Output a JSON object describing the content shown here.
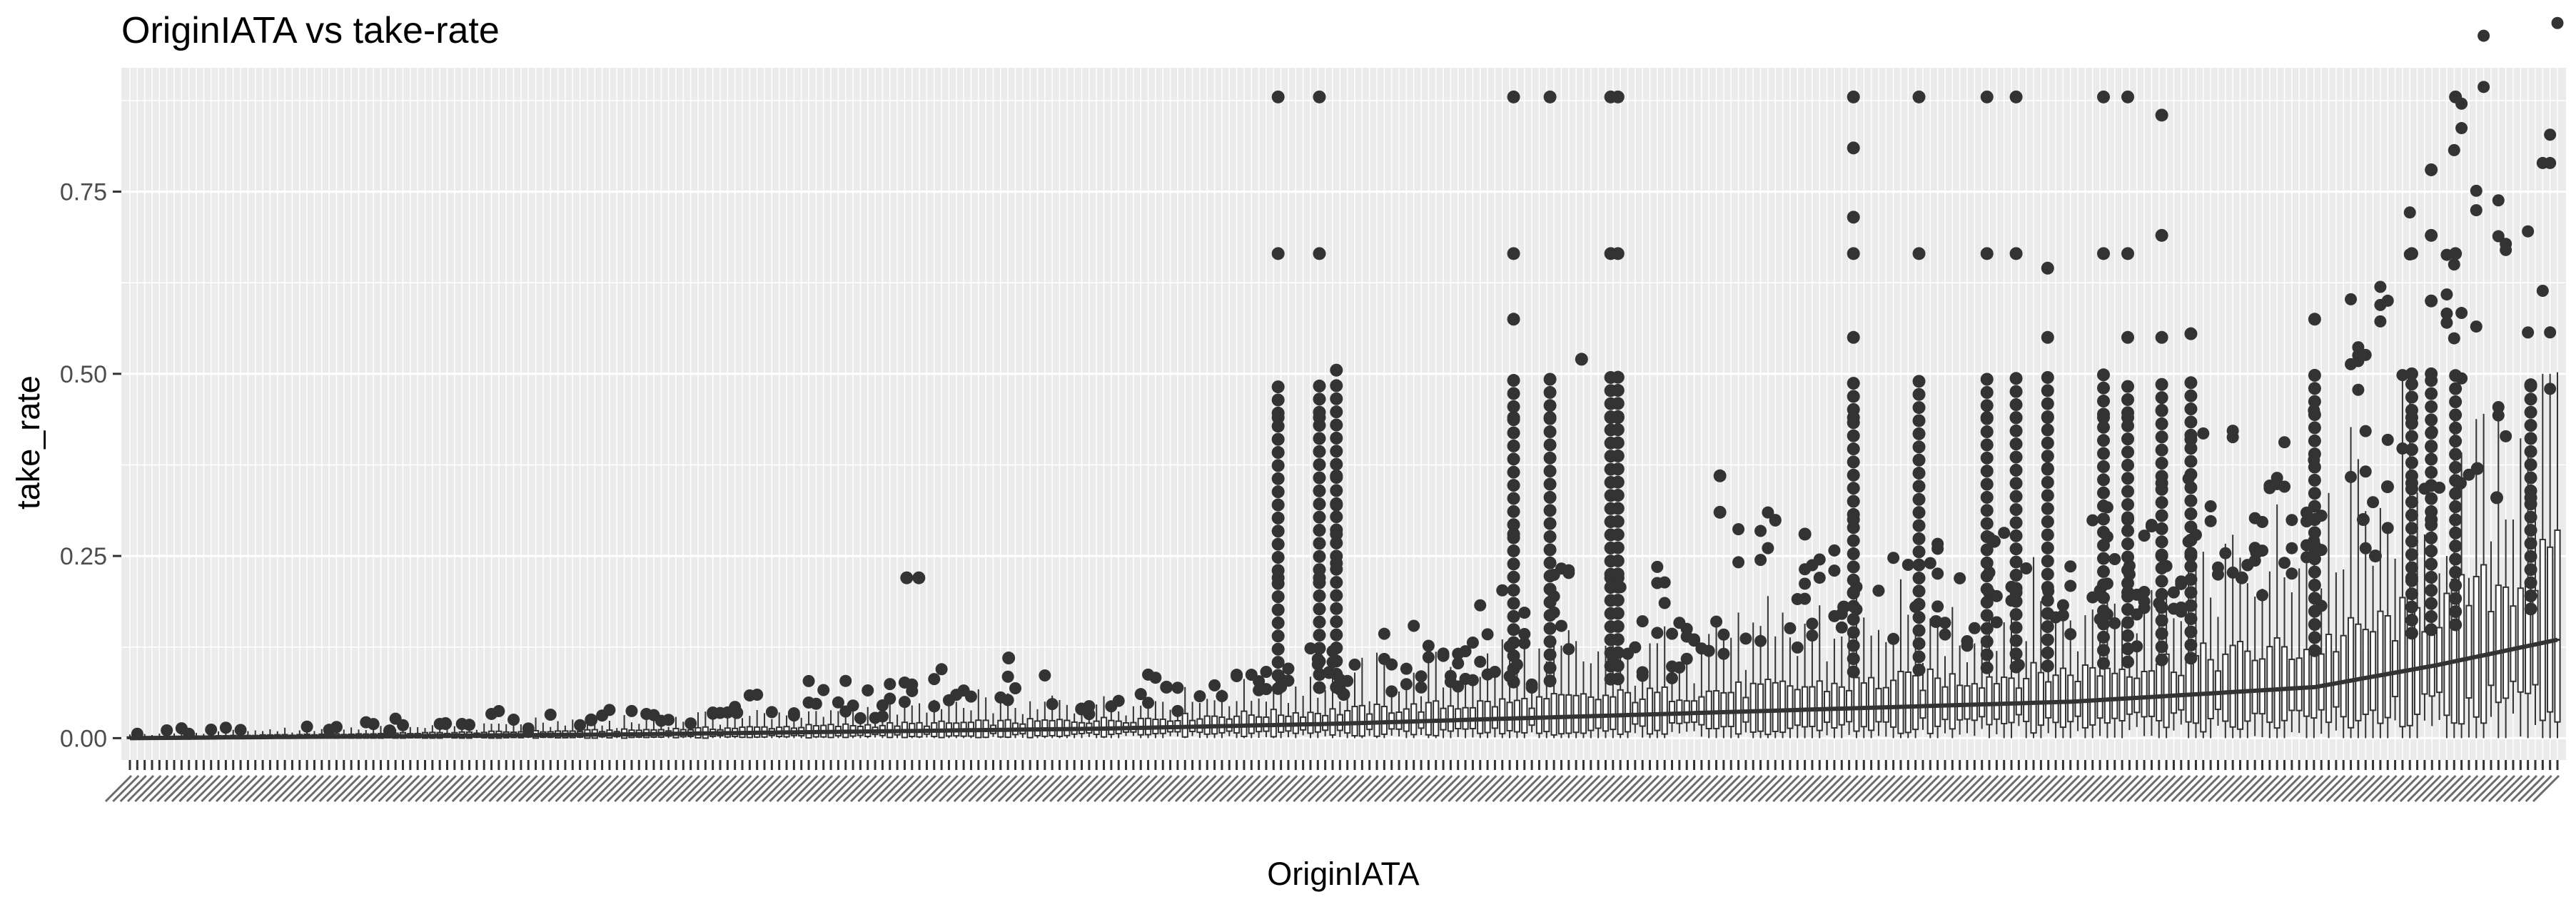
{
  "chart_data": {
    "type": "box",
    "title": "OriginIATA vs take-rate",
    "xlabel": "OriginIATA",
    "ylabel": "take_rate",
    "ylim": [
      -0.03,
      0.92
    ],
    "yticks": [
      0.0,
      0.25,
      0.5,
      0.75
    ],
    "ytick_labels": [
      "0.00",
      "0.25",
      "0.50",
      "0.75"
    ],
    "grid": true,
    "legend": "none",
    "x_category_count": 330,
    "x_categories_note": "illegible",
    "trend": {
      "x_fraction": [
        0.0,
        0.2,
        0.4,
        0.5,
        0.6,
        0.7,
        0.8,
        0.9,
        0.95,
        1.0
      ],
      "y": [
        0.0,
        0.005,
        0.013,
        0.02,
        0.03,
        0.04,
        0.05,
        0.07,
        0.1,
        0.135
      ]
    },
    "outlier_columns": [
      {
        "x_fraction": 0.473,
        "y": [
          0.22,
          0.44,
          0.665,
          0.88
        ]
      },
      {
        "x_fraction": 0.49,
        "y": [
          0.22,
          0.44,
          0.665,
          0.88
        ]
      },
      {
        "x_fraction": 0.497,
        "y": [
          0.24,
          0.28,
          0.32,
          0.36,
          0.505
        ]
      },
      {
        "x_fraction": 0.57,
        "y": [
          0.28,
          0.44,
          0.575,
          0.665,
          0.88
        ]
      },
      {
        "x_fraction": 0.585,
        "y": [
          0.44,
          0.88
        ]
      },
      {
        "x_fraction": 0.61,
        "y": [
          0.22,
          0.44,
          0.665,
          0.88
        ]
      },
      {
        "x_fraction": 0.613,
        "y": [
          0.22,
          0.44,
          0.665,
          0.88
        ]
      },
      {
        "x_fraction": 0.71,
        "y": [
          0.2,
          0.3,
          0.44,
          0.55,
          0.665,
          0.715,
          0.81,
          0.88
        ]
      },
      {
        "x_fraction": 0.737,
        "y": [
          0.665,
          0.88
        ]
      },
      {
        "x_fraction": 0.765,
        "y": [
          0.44,
          0.665,
          0.88
        ]
      },
      {
        "x_fraction": 0.777,
        "y": [
          0.2,
          0.44,
          0.665,
          0.88
        ]
      },
      {
        "x_fraction": 0.79,
        "y": [
          0.37,
          0.44,
          0.55,
          0.645
        ]
      },
      {
        "x_fraction": 0.813,
        "y": [
          0.44,
          0.665,
          0.88
        ]
      },
      {
        "x_fraction": 0.823,
        "y": [
          0.2,
          0.3,
          0.44,
          0.55,
          0.665,
          0.88
        ]
      },
      {
        "x_fraction": 0.837,
        "y": [
          0.25,
          0.35,
          0.45,
          0.55,
          0.69,
          0.855
        ]
      },
      {
        "x_fraction": 0.849,
        "y": [
          0.25,
          0.41,
          0.555
        ]
      },
      {
        "x_fraction": 0.9,
        "y": [
          0.3,
          0.575
        ]
      },
      {
        "x_fraction": 0.94,
        "y": [
          0.22,
          0.35,
          0.44,
          0.5,
          0.665
        ]
      },
      {
        "x_fraction": 0.948,
        "y": [
          0.3,
          0.4,
          0.5,
          0.6,
          0.69,
          0.78
        ]
      },
      {
        "x_fraction": 0.958,
        "y": [
          0.665,
          0.88
        ]
      },
      {
        "x_fraction": 0.989,
        "y": [
          0.33,
          0.485
        ]
      }
    ],
    "scattered_outliers": [
      {
        "x_fraction": 0.107,
        "y": 0.01
      },
      {
        "x_fraction": 0.13,
        "y": 0.02
      },
      {
        "x_fraction": 0.19,
        "y": 0.025
      },
      {
        "x_fraction": 0.25,
        "y": 0.035
      },
      {
        "x_fraction": 0.32,
        "y": 0.22
      },
      {
        "x_fraction": 0.325,
        "y": 0.22
      },
      {
        "x_fraction": 0.362,
        "y": 0.11
      },
      {
        "x_fraction": 0.392,
        "y": 0.04
      },
      {
        "x_fraction": 0.427,
        "y": 0.07
      },
      {
        "x_fraction": 0.494,
        "y": 0.09
      },
      {
        "x_fraction": 0.5,
        "y": 0.06
      },
      {
        "x_fraction": 0.598,
        "y": 0.52
      },
      {
        "x_fraction": 0.655,
        "y": 0.36
      },
      {
        "x_fraction": 0.655,
        "y": 0.31
      },
      {
        "x_fraction": 0.69,
        "y": 0.28
      },
      {
        "x_fraction": 0.706,
        "y": 0.18
      },
      {
        "x_fraction": 0.744,
        "y": 0.16
      },
      {
        "x_fraction": 0.768,
        "y": 0.27
      },
      {
        "x_fraction": 0.87,
        "y": 0.22
      },
      {
        "x_fraction": 0.876,
        "y": 0.255
      },
      {
        "x_fraction": 0.92,
        "y": 0.3
      },
      {
        "x_fraction": 0.925,
        "y": 0.25
      },
      {
        "x_fraction": 0.93,
        "y": 0.345
      },
      {
        "x_fraction": 0.96,
        "y": 0.35
      },
      {
        "x_fraction": 0.967,
        "y": 0.37
      },
      {
        "x_fraction": 0.975,
        "y": 0.33
      }
    ],
    "whisker_tall": [
      {
        "x_fraction": 0.955,
        "ymax": 0.25
      },
      {
        "x_fraction": 0.963,
        "ymax": 0.22
      },
      {
        "x_fraction": 0.972,
        "ymax": 0.27
      },
      {
        "x_fraction": 0.98,
        "ymax": 0.3
      },
      {
        "x_fraction": 0.995,
        "ymax": 0.5
      }
    ]
  }
}
